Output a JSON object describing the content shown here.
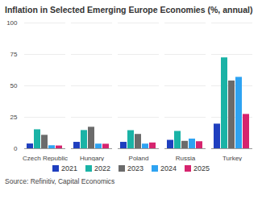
{
  "chart_data": {
    "type": "bar",
    "title": "Inflation in Selected Emerging Europe Economies (%, annual)",
    "categories": [
      "Czech Republic",
      "Hungary",
      "Poland",
      "Russia",
      "Turkey"
    ],
    "series": [
      {
        "name": "2021",
        "color": "#1f3fbf",
        "values": [
          3.8,
          5.1,
          5.1,
          6.7,
          19.6
        ]
      },
      {
        "name": "2022",
        "color": "#1ab3a6",
        "values": [
          15.1,
          14.5,
          14.4,
          13.8,
          72.3
        ]
      },
      {
        "name": "2023",
        "color": "#6b6b6b",
        "values": [
          10.7,
          17.1,
          11.4,
          5.9,
          53.9
        ]
      },
      {
        "name": "2024",
        "color": "#2ea3f2",
        "values": [
          2.4,
          3.7,
          3.7,
          7.7,
          56.8
        ]
      },
      {
        "name": "2025",
        "color": "#d6246e",
        "values": [
          2.2,
          3.6,
          4.6,
          5.6,
          27.3
        ]
      }
    ],
    "ylim": [
      0,
      100
    ],
    "yticks": [
      0,
      25,
      50,
      75,
      100
    ],
    "grid": true,
    "legend": "bottom",
    "caption": "Source: Refinitiv, Capital Economics"
  }
}
